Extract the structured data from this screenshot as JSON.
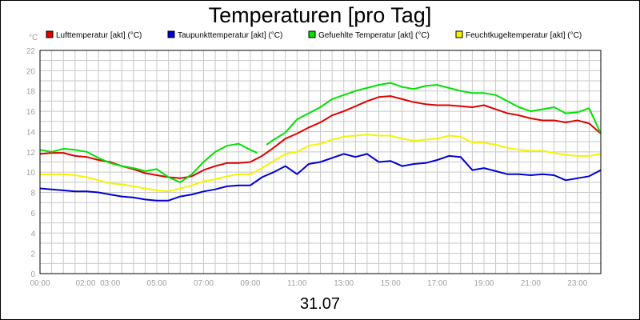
{
  "chart_data": {
    "type": "line",
    "title": "Temperaturen [pro Tag]",
    "y_unit_label": "°C",
    "date_label": "31.07",
    "ylim": [
      0,
      22
    ],
    "y_ticks": [
      "0",
      "2",
      "4",
      "6",
      "8",
      "10",
      "12",
      "14",
      "16",
      "18",
      "20",
      "22"
    ],
    "xlim_hours": [
      0,
      24
    ],
    "x_tick_labels": [
      {
        "hour": 0,
        "label": "00:00"
      },
      {
        "hour": 1.95,
        "label": "02:00"
      },
      {
        "hour": 3,
        "label": "03:00"
      },
      {
        "hour": 5,
        "label": "05:00"
      },
      {
        "hour": 7,
        "label": "07:00"
      },
      {
        "hour": 9,
        "label": "09:00"
      },
      {
        "hour": 11,
        "label": "11:00"
      },
      {
        "hour": 13,
        "label": "13:00"
      },
      {
        "hour": 15,
        "label": "15:00"
      },
      {
        "hour": 17,
        "label": "17:00"
      },
      {
        "hour": 19,
        "label": "19:00"
      },
      {
        "hour": 21,
        "label": "21:00"
      },
      {
        "hour": 23,
        "label": "23:00"
      }
    ],
    "grid": true,
    "legend_position": "top",
    "series": [
      {
        "name": "Lufttemperatur [akt] (°C)",
        "color": "#e00000",
        "points": [
          [
            0,
            11.8
          ],
          [
            0.5,
            11.9
          ],
          [
            1,
            11.9
          ],
          [
            1.5,
            11.6
          ],
          [
            2,
            11.5
          ],
          [
            2.5,
            11.2
          ],
          [
            3,
            11.0
          ],
          [
            3.5,
            10.6
          ],
          [
            4,
            10.3
          ],
          [
            4.5,
            9.9
          ],
          [
            5,
            9.7
          ],
          [
            5.5,
            9.5
          ],
          [
            6,
            9.4
          ],
          [
            6.5,
            9.6
          ],
          [
            7,
            10.2
          ],
          [
            7.5,
            10.6
          ],
          [
            8,
            10.9
          ],
          [
            8.5,
            10.9
          ],
          [
            9,
            11.0
          ],
          [
            9.5,
            11.6
          ],
          [
            10,
            12.4
          ],
          [
            10.5,
            13.3
          ],
          [
            11,
            13.8
          ],
          [
            11.5,
            14.4
          ],
          [
            12,
            14.9
          ],
          [
            12.5,
            15.6
          ],
          [
            13,
            16.0
          ],
          [
            13.5,
            16.5
          ],
          [
            14,
            17.0
          ],
          [
            14.5,
            17.4
          ],
          [
            15,
            17.5
          ],
          [
            15.5,
            17.2
          ],
          [
            16,
            16.9
          ],
          [
            16.5,
            16.7
          ],
          [
            17,
            16.6
          ],
          [
            17.5,
            16.6
          ],
          [
            18,
            16.5
          ],
          [
            18.5,
            16.4
          ],
          [
            19,
            16.6
          ],
          [
            19.5,
            16.2
          ],
          [
            20,
            15.8
          ],
          [
            20.5,
            15.6
          ],
          [
            21,
            15.3
          ],
          [
            21.5,
            15.1
          ],
          [
            22,
            15.1
          ],
          [
            22.5,
            14.9
          ],
          [
            23,
            15.1
          ],
          [
            23.5,
            14.8
          ],
          [
            24,
            13.8
          ]
        ]
      },
      {
        "name": "Taupunkttemperatur [akt] (°C)",
        "color": "#0000d0",
        "points": [
          [
            0,
            8.4
          ],
          [
            0.5,
            8.3
          ],
          [
            1,
            8.2
          ],
          [
            1.5,
            8.1
          ],
          [
            2,
            8.1
          ],
          [
            2.5,
            8.0
          ],
          [
            3,
            7.8
          ],
          [
            3.5,
            7.6
          ],
          [
            4,
            7.5
          ],
          [
            4.5,
            7.3
          ],
          [
            5,
            7.2
          ],
          [
            5.5,
            7.2
          ],
          [
            6,
            7.6
          ],
          [
            6.5,
            7.8
          ],
          [
            7,
            8.1
          ],
          [
            7.5,
            8.3
          ],
          [
            8,
            8.6
          ],
          [
            8.5,
            8.7
          ],
          [
            9,
            8.7
          ],
          [
            9.5,
            9.5
          ],
          [
            10,
            10.0
          ],
          [
            10.5,
            10.6
          ],
          [
            11,
            9.8
          ],
          [
            11.5,
            10.8
          ],
          [
            12,
            11.0
          ],
          [
            12.5,
            11.4
          ],
          [
            13,
            11.8
          ],
          [
            13.5,
            11.5
          ],
          [
            14,
            11.8
          ],
          [
            14.5,
            11.0
          ],
          [
            15,
            11.1
          ],
          [
            15.5,
            10.6
          ],
          [
            16,
            10.8
          ],
          [
            16.5,
            10.9
          ],
          [
            17,
            11.2
          ],
          [
            17.5,
            11.6
          ],
          [
            18,
            11.5
          ],
          [
            18.5,
            10.2
          ],
          [
            19,
            10.4
          ],
          [
            19.5,
            10.1
          ],
          [
            20,
            9.8
          ],
          [
            20.5,
            9.8
          ],
          [
            21,
            9.7
          ],
          [
            21.5,
            9.8
          ],
          [
            22,
            9.7
          ],
          [
            22.5,
            9.2
          ],
          [
            23,
            9.4
          ],
          [
            23.5,
            9.6
          ],
          [
            24,
            10.2
          ]
        ]
      },
      {
        "name": "Gefuehlte Temperatur [akt] (°C)",
        "color": "#00e000",
        "points": [
          [
            0,
            12.2
          ],
          [
            0.5,
            12.0
          ],
          [
            1,
            12.3
          ],
          [
            1.5,
            12.2
          ],
          [
            2,
            12.0
          ],
          [
            2.5,
            11.4
          ],
          [
            3,
            10.9
          ],
          [
            3.5,
            10.6
          ],
          [
            4,
            10.4
          ],
          [
            4.5,
            10.1
          ],
          [
            5,
            10.3
          ],
          [
            5.5,
            9.5
          ],
          [
            6,
            9.0
          ],
          [
            6.5,
            9.8
          ],
          [
            7,
            11.0
          ],
          [
            7.5,
            12.0
          ],
          [
            8,
            12.6
          ],
          [
            8.5,
            12.8
          ],
          [
            9,
            12.2
          ],
          [
            9.3,
            11.9
          ],
          [
            9.5,
            null
          ],
          [
            9.7,
            12.7
          ],
          [
            10,
            13.2
          ],
          [
            10.5,
            13.9
          ],
          [
            11,
            15.2
          ],
          [
            11.5,
            15.8
          ],
          [
            12,
            16.4
          ],
          [
            12.5,
            17.2
          ],
          [
            13,
            17.6
          ],
          [
            13.5,
            18.0
          ],
          [
            14,
            18.3
          ],
          [
            14.5,
            18.6
          ],
          [
            15,
            18.8
          ],
          [
            15.5,
            18.4
          ],
          [
            16,
            18.2
          ],
          [
            16.5,
            18.5
          ],
          [
            17,
            18.6
          ],
          [
            17.5,
            18.3
          ],
          [
            18,
            18.0
          ],
          [
            18.5,
            17.8
          ],
          [
            19,
            17.8
          ],
          [
            19.5,
            17.6
          ],
          [
            20,
            17.0
          ],
          [
            20.5,
            16.4
          ],
          [
            21,
            16.0
          ],
          [
            21.5,
            16.2
          ],
          [
            22,
            16.4
          ],
          [
            22.5,
            15.8
          ],
          [
            23,
            15.9
          ],
          [
            23.5,
            16.3
          ],
          [
            24,
            13.8
          ]
        ]
      },
      {
        "name": "Feuchtkugeltemperatur [akt] (°C)",
        "color": "#f4f400",
        "points": [
          [
            0,
            9.8
          ],
          [
            0.5,
            9.8
          ],
          [
            1,
            9.8
          ],
          [
            1.5,
            9.7
          ],
          [
            2,
            9.5
          ],
          [
            2.5,
            9.2
          ],
          [
            3,
            8.9
          ],
          [
            3.5,
            8.8
          ],
          [
            4,
            8.6
          ],
          [
            4.5,
            8.4
          ],
          [
            5,
            8.2
          ],
          [
            5.5,
            8.1
          ],
          [
            6,
            8.4
          ],
          [
            6.5,
            8.7
          ],
          [
            7,
            9.1
          ],
          [
            7.5,
            9.3
          ],
          [
            8,
            9.6
          ],
          [
            8.5,
            9.8
          ],
          [
            9,
            9.8
          ],
          [
            9.5,
            10.4
          ],
          [
            10,
            11.1
          ],
          [
            10.5,
            11.8
          ],
          [
            11,
            12.0
          ],
          [
            11.5,
            12.6
          ],
          [
            12,
            12.8
          ],
          [
            12.5,
            13.2
          ],
          [
            13,
            13.5
          ],
          [
            13.5,
            13.6
          ],
          [
            14,
            13.7
          ],
          [
            14.5,
            13.6
          ],
          [
            15,
            13.6
          ],
          [
            15.5,
            13.3
          ],
          [
            16,
            13.1
          ],
          [
            16.5,
            13.2
          ],
          [
            17,
            13.3
          ],
          [
            17.5,
            13.6
          ],
          [
            18,
            13.5
          ],
          [
            18.5,
            12.9
          ],
          [
            19,
            12.9
          ],
          [
            19.5,
            12.7
          ],
          [
            20,
            12.4
          ],
          [
            20.5,
            12.2
          ],
          [
            21,
            12.1
          ],
          [
            21.5,
            12.1
          ],
          [
            22,
            11.9
          ],
          [
            22.5,
            11.7
          ],
          [
            23,
            11.6
          ],
          [
            23.5,
            11.6
          ],
          [
            24,
            11.8
          ]
        ]
      }
    ]
  }
}
